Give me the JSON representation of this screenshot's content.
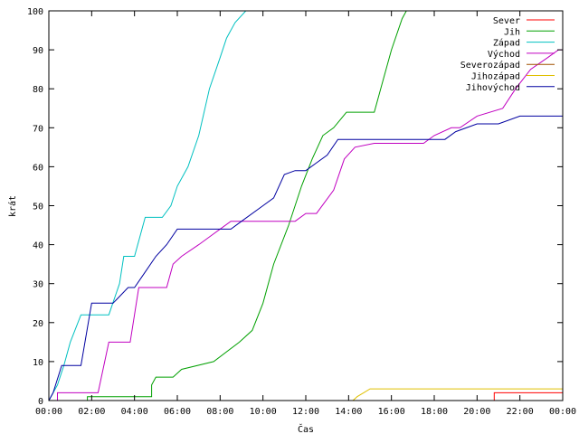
{
  "chart_data": {
    "type": "line",
    "title": "",
    "xlabel": "Čas",
    "ylabel": "krát",
    "x_unit": "hours",
    "xlim": [
      0,
      24
    ],
    "ylim": [
      0,
      100
    ],
    "x_ticks": [
      {
        "value": 0,
        "label": "00:00"
      },
      {
        "value": 2,
        "label": "02:00"
      },
      {
        "value": 4,
        "label": "04:00"
      },
      {
        "value": 6,
        "label": "06:00"
      },
      {
        "value": 8,
        "label": "08:00"
      },
      {
        "value": 10,
        "label": "10:00"
      },
      {
        "value": 12,
        "label": "12:00"
      },
      {
        "value": 14,
        "label": "14:00"
      },
      {
        "value": 16,
        "label": "16:00"
      },
      {
        "value": 18,
        "label": "18:00"
      },
      {
        "value": 20,
        "label": "20:00"
      },
      {
        "value": 22,
        "label": "22:00"
      },
      {
        "value": 24,
        "label": "00:00"
      }
    ],
    "y_ticks": [
      0,
      10,
      20,
      30,
      40,
      50,
      60,
      70,
      80,
      90,
      100
    ],
    "grid": false,
    "legend_position": "top-right",
    "series": [
      {
        "name": "Sever",
        "color": "#ff0000",
        "x": [
          0,
          20.8,
          20.8,
          24
        ],
        "y": [
          0,
          0,
          2,
          2
        ]
      },
      {
        "name": "Jih",
        "color": "#00a000",
        "x": [
          0,
          1.8,
          1.8,
          4.8,
          4.8,
          5.0,
          5.8,
          6.2,
          7.7,
          8.9,
          9.5,
          10.0,
          10.5,
          11.2,
          11.8,
          12.3,
          12.8,
          13.3,
          13.9,
          14.2,
          15.2,
          15.5,
          16.0,
          16.5,
          16.7
        ],
        "y": [
          0,
          0,
          1,
          1,
          4,
          6,
          6,
          8,
          10,
          15,
          18,
          25,
          35,
          45,
          55,
          62,
          68,
          70,
          74,
          74,
          74,
          80,
          90,
          98,
          100
        ]
      },
      {
        "name": "Západ",
        "color": "#00c0c0",
        "x": [
          0,
          0.2,
          0.4,
          0.7,
          1.0,
          1.5,
          2.8,
          3.3,
          3.5,
          4.0,
          4.5,
          5.3,
          5.7,
          6.0,
          6.5,
          7.0,
          7.5,
          8.0,
          8.3,
          8.7,
          9.2
        ],
        "y": [
          0,
          2,
          4,
          9,
          15,
          22,
          22,
          30,
          37,
          37,
          47,
          47,
          50,
          55,
          60,
          68,
          80,
          88,
          93,
          97,
          100
        ]
      },
      {
        "name": "Východ",
        "color": "#c000c0",
        "x": [
          0,
          0.4,
          0.4,
          2.3,
          2.8,
          3.8,
          4.2,
          5.5,
          5.8,
          6.2,
          7.0,
          7.5,
          8.5,
          10.0,
          11.5,
          12.0,
          12.5,
          13.3,
          13.8,
          14.3,
          15.2,
          16.3,
          17.5,
          18.0,
          18.8,
          19.2,
          20.0,
          21.2,
          21.8,
          22.5,
          23.3,
          23.8,
          24.0
        ],
        "y": [
          0,
          0,
          2,
          2,
          15,
          15,
          29,
          29,
          35,
          37,
          40,
          42,
          46,
          46,
          46,
          48,
          48,
          54,
          62,
          65,
          66,
          66,
          66,
          68,
          70,
          70,
          73,
          75,
          80,
          85,
          88,
          90,
          90
        ]
      },
      {
        "name": "Severozápad",
        "color": "#a05000",
        "x": [
          0,
          24
        ],
        "y": [
          0,
          0
        ]
      },
      {
        "name": "Jihozápad",
        "color": "#e0c000",
        "x": [
          0,
          14.2,
          14.4,
          14.7,
          15.0,
          24
        ],
        "y": [
          0,
          0,
          1,
          2,
          3,
          3
        ]
      },
      {
        "name": "Jihovýchod",
        "color": "#0000a0",
        "x": [
          0,
          0.2,
          0.6,
          1.5,
          2.0,
          3.0,
          3.7,
          4.0,
          4.5,
          5.0,
          5.5,
          6.0,
          8.5,
          9.0,
          10.0,
          10.5,
          11.0,
          11.5,
          12.0,
          12.5,
          13.0,
          13.5,
          14.0,
          16.0,
          18.5,
          19.0,
          20.0,
          21.0,
          22.0,
          24.0
        ],
        "y": [
          0,
          2,
          9,
          9,
          25,
          25,
          29,
          29,
          33,
          37,
          40,
          44,
          44,
          46,
          50,
          52,
          58,
          59,
          59,
          61,
          63,
          67,
          67,
          67,
          67,
          69,
          71,
          71,
          73,
          73
        ]
      }
    ]
  }
}
